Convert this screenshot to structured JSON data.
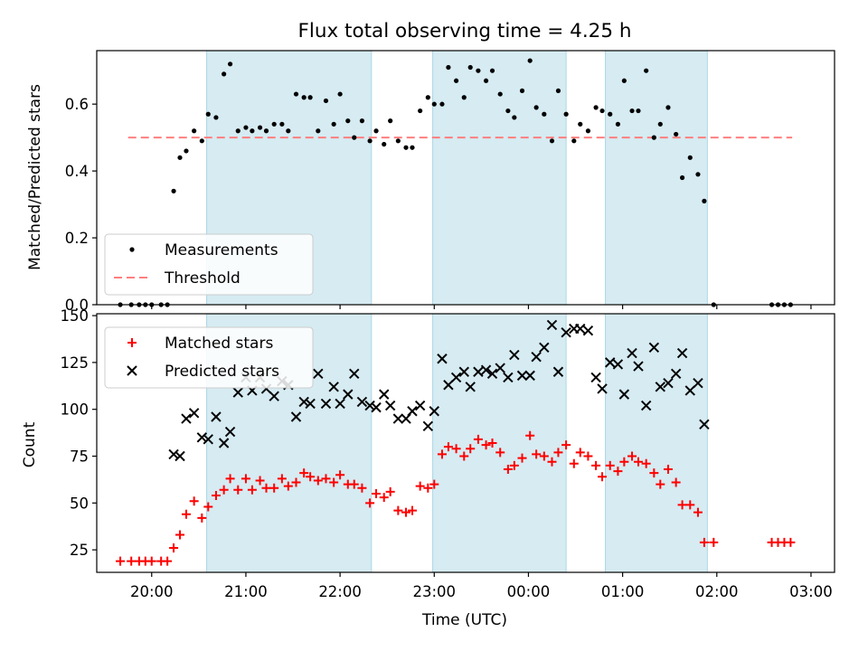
{
  "chart_data": [
    {
      "type": "scatter",
      "title": "Flux total observing time = 4.25 h",
      "ylabel": "Matched/Predicted stars",
      "xlabel": "",
      "x_ticks": [
        "20:00",
        "21:00",
        "22:00",
        "23:00",
        "00:00",
        "01:00",
        "02:00",
        "03:00"
      ],
      "ylim": [
        0,
        0.76
      ],
      "y_ticks": [
        "0.0",
        "0.2",
        "0.4",
        "0.6"
      ],
      "shaded_intervals": [
        [
          "20:35",
          "22:20"
        ],
        [
          "22:59",
          "00:24"
        ],
        [
          "00:49",
          "01:54"
        ]
      ],
      "threshold": {
        "value": 0.5,
        "from": "19:45",
        "to": "02:48",
        "color": "#ff7f7f"
      },
      "legend": {
        "placement": "lower-left",
        "entries": [
          "Measurements",
          "Threshold"
        ]
      },
      "series": [
        {
          "name": "Measurements",
          "color": "#000000",
          "points": [
            [
              "19:40",
              0.0
            ],
            [
              "19:47",
              0.0
            ],
            [
              "19:52",
              0.0
            ],
            [
              "19:56",
              0.0
            ],
            [
              "20:00",
              0.0
            ],
            [
              "20:06",
              0.0
            ],
            [
              "20:10",
              0.0
            ],
            [
              "20:14",
              0.34
            ],
            [
              "20:18",
              0.44
            ],
            [
              "20:22",
              0.46
            ],
            [
              "20:27",
              0.52
            ],
            [
              "20:32",
              0.49
            ],
            [
              "20:36",
              0.57
            ],
            [
              "20:41",
              0.56
            ],
            [
              "20:46",
              0.69
            ],
            [
              "20:50",
              0.72
            ],
            [
              "20:55",
              0.52
            ],
            [
              "21:00",
              0.53
            ],
            [
              "21:04",
              0.52
            ],
            [
              "21:09",
              0.53
            ],
            [
              "21:13",
              0.52
            ],
            [
              "21:18",
              0.54
            ],
            [
              "21:23",
              0.54
            ],
            [
              "21:27",
              0.52
            ],
            [
              "21:32",
              0.63
            ],
            [
              "21:37",
              0.62
            ],
            [
              "21:41",
              0.62
            ],
            [
              "21:46",
              0.52
            ],
            [
              "21:51",
              0.61
            ],
            [
              "21:56",
              0.54
            ],
            [
              "22:00",
              0.63
            ],
            [
              "22:05",
              0.55
            ],
            [
              "22:09",
              0.5
            ],
            [
              "22:14",
              0.55
            ],
            [
              "22:19",
              0.49
            ],
            [
              "22:23",
              0.52
            ],
            [
              "22:28",
              0.48
            ],
            [
              "22:32",
              0.55
            ],
            [
              "22:37",
              0.49
            ],
            [
              "22:42",
              0.47
            ],
            [
              "22:46",
              0.47
            ],
            [
              "22:51",
              0.58
            ],
            [
              "22:56",
              0.62
            ],
            [
              "23:00",
              0.6
            ],
            [
              "23:05",
              0.6
            ],
            [
              "23:09",
              0.71
            ],
            [
              "23:14",
              0.67
            ],
            [
              "23:19",
              0.62
            ],
            [
              "23:23",
              0.71
            ],
            [
              "23:28",
              0.7
            ],
            [
              "23:33",
              0.67
            ],
            [
              "23:37",
              0.7
            ],
            [
              "23:42",
              0.63
            ],
            [
              "23:47",
              0.58
            ],
            [
              "23:51",
              0.56
            ],
            [
              "23:56",
              0.64
            ],
            [
              "00:01",
              0.73
            ],
            [
              "00:05",
              0.59
            ],
            [
              "00:10",
              0.57
            ],
            [
              "00:15",
              0.49
            ],
            [
              "00:19",
              0.64
            ],
            [
              "00:24",
              0.57
            ],
            [
              "00:29",
              0.49
            ],
            [
              "00:33",
              0.54
            ],
            [
              "00:38",
              0.52
            ],
            [
              "00:43",
              0.59
            ],
            [
              "00:47",
              0.58
            ],
            [
              "00:52",
              0.57
            ],
            [
              "00:57",
              0.54
            ],
            [
              "01:01",
              0.67
            ],
            [
              "01:06",
              0.58
            ],
            [
              "01:10",
              0.58
            ],
            [
              "01:15",
              0.7
            ],
            [
              "01:20",
              0.5
            ],
            [
              "01:24",
              0.54
            ],
            [
              "01:29",
              0.59
            ],
            [
              "01:34",
              0.51
            ],
            [
              "01:38",
              0.38
            ],
            [
              "01:43",
              0.44
            ],
            [
              "01:48",
              0.39
            ],
            [
              "01:52",
              0.31
            ],
            [
              "01:58",
              0.0
            ],
            [
              "02:35",
              0.0
            ],
            [
              "02:39",
              0.0
            ],
            [
              "02:43",
              0.0
            ],
            [
              "02:47",
              0.0
            ]
          ]
        }
      ]
    },
    {
      "type": "scatter",
      "title": "",
      "xlabel": "Time (UTC)",
      "ylabel": "Count",
      "x_ticks": [
        "20:00",
        "21:00",
        "22:00",
        "23:00",
        "00:00",
        "01:00",
        "02:00",
        "03:00"
      ],
      "ylim": [
        13,
        151
      ],
      "y_ticks": [
        "25",
        "50",
        "75",
        "100",
        "125",
        "150"
      ],
      "shaded_intervals": [
        [
          "20:35",
          "22:20"
        ],
        [
          "22:59",
          "00:24"
        ],
        [
          "00:49",
          "01:54"
        ]
      ],
      "legend": {
        "placement": "upper-left",
        "entries": [
          "Matched stars",
          "Predicted stars"
        ]
      },
      "series": [
        {
          "name": "Matched stars",
          "color": "#ff0000",
          "marker": "plus",
          "points": [
            [
              "19:40",
              19
            ],
            [
              "19:47",
              19
            ],
            [
              "19:52",
              19
            ],
            [
              "19:56",
              19
            ],
            [
              "20:00",
              19
            ],
            [
              "20:06",
              19
            ],
            [
              "20:10",
              19
            ],
            [
              "20:14",
              26
            ],
            [
              "20:18",
              33
            ],
            [
              "20:22",
              44
            ],
            [
              "20:27",
              51
            ],
            [
              "20:32",
              42
            ],
            [
              "20:36",
              48
            ],
            [
              "20:41",
              54
            ],
            [
              "20:46",
              57
            ],
            [
              "20:50",
              63
            ],
            [
              "20:55",
              57
            ],
            [
              "21:00",
              63
            ],
            [
              "21:04",
              57
            ],
            [
              "21:09",
              62
            ],
            [
              "21:13",
              58
            ],
            [
              "21:18",
              58
            ],
            [
              "21:23",
              63
            ],
            [
              "21:27",
              59
            ],
            [
              "21:32",
              61
            ],
            [
              "21:37",
              66
            ],
            [
              "21:41",
              64
            ],
            [
              "21:46",
              62
            ],
            [
              "21:51",
              63
            ],
            [
              "21:56",
              61
            ],
            [
              "22:00",
              65
            ],
            [
              "22:05",
              60
            ],
            [
              "22:09",
              60
            ],
            [
              "22:14",
              58
            ],
            [
              "22:19",
              50
            ],
            [
              "22:23",
              55
            ],
            [
              "22:28",
              53
            ],
            [
              "22:32",
              56
            ],
            [
              "22:37",
              46
            ],
            [
              "22:42",
              45
            ],
            [
              "22:46",
              46
            ],
            [
              "22:51",
              59
            ],
            [
              "22:56",
              58
            ],
            [
              "23:00",
              60
            ],
            [
              "23:05",
              76
            ],
            [
              "23:09",
              80
            ],
            [
              "23:14",
              79
            ],
            [
              "23:19",
              75
            ],
            [
              "23:23",
              79
            ],
            [
              "23:28",
              84
            ],
            [
              "23:33",
              81
            ],
            [
              "23:37",
              82
            ],
            [
              "23:42",
              77
            ],
            [
              "23:47",
              68
            ],
            [
              "23:51",
              70
            ],
            [
              "23:56",
              74
            ],
            [
              "00:01",
              86
            ],
            [
              "00:05",
              76
            ],
            [
              "00:10",
              75
            ],
            [
              "00:15",
              72
            ],
            [
              "00:19",
              77
            ],
            [
              "00:24",
              81
            ],
            [
              "00:29",
              71
            ],
            [
              "00:33",
              77
            ],
            [
              "00:38",
              75
            ],
            [
              "00:43",
              70
            ],
            [
              "00:47",
              64
            ],
            [
              "00:52",
              70
            ],
            [
              "00:57",
              67
            ],
            [
              "01:01",
              72
            ],
            [
              "01:06",
              75
            ],
            [
              "01:10",
              72
            ],
            [
              "01:15",
              71
            ],
            [
              "01:20",
              66
            ],
            [
              "01:24",
              60
            ],
            [
              "01:29",
              68
            ],
            [
              "01:34",
              61
            ],
            [
              "01:38",
              49
            ],
            [
              "01:43",
              49
            ],
            [
              "01:48",
              45
            ],
            [
              "01:52",
              29
            ],
            [
              "01:58",
              29
            ],
            [
              "02:35",
              29
            ],
            [
              "02:39",
              29
            ],
            [
              "02:43",
              29
            ],
            [
              "02:47",
              29
            ]
          ]
        },
        {
          "name": "Predicted stars",
          "color": "#000000",
          "marker": "x",
          "points": [
            [
              "20:14",
              76
            ],
            [
              "20:18",
              75
            ],
            [
              "20:22",
              95
            ],
            [
              "20:27",
              98
            ],
            [
              "20:32",
              85
            ],
            [
              "20:36",
              84
            ],
            [
              "20:41",
              96
            ],
            [
              "20:46",
              82
            ],
            [
              "20:50",
              88
            ],
            [
              "20:55",
              109
            ],
            [
              "21:00",
              117
            ],
            [
              "21:04",
              110
            ],
            [
              "21:09",
              117
            ],
            [
              "21:13",
              111
            ],
            [
              "21:18",
              107
            ],
            [
              "21:23",
              115
            ],
            [
              "21:27",
              113
            ],
            [
              "21:32",
              96
            ],
            [
              "21:37",
              104
            ],
            [
              "21:41",
              103
            ],
            [
              "21:46",
              119
            ],
            [
              "21:51",
              103
            ],
            [
              "21:56",
              112
            ],
            [
              "22:00",
              103
            ],
            [
              "22:05",
              108
            ],
            [
              "22:09",
              119
            ],
            [
              "22:14",
              104
            ],
            [
              "22:19",
              102
            ],
            [
              "22:23",
              101
            ],
            [
              "22:28",
              108
            ],
            [
              "22:32",
              102
            ],
            [
              "22:37",
              95
            ],
            [
              "22:42",
              95
            ],
            [
              "22:46",
              99
            ],
            [
              "22:51",
              102
            ],
            [
              "22:56",
              91
            ],
            [
              "23:00",
              99
            ],
            [
              "23:05",
              127
            ],
            [
              "23:09",
              113
            ],
            [
              "23:14",
              117
            ],
            [
              "23:19",
              120
            ],
            [
              "23:23",
              112
            ],
            [
              "23:28",
              120
            ],
            [
              "23:33",
              121
            ],
            [
              "23:37",
              119
            ],
            [
              "23:42",
              122
            ],
            [
              "23:47",
              117
            ],
            [
              "23:51",
              129
            ],
            [
              "23:56",
              118
            ],
            [
              "00:01",
              118
            ],
            [
              "00:05",
              128
            ],
            [
              "00:10",
              133
            ],
            [
              "00:15",
              145
            ],
            [
              "00:19",
              120
            ],
            [
              "00:24",
              141
            ],
            [
              "00:29",
              143
            ],
            [
              "00:33",
              143
            ],
            [
              "00:38",
              142
            ],
            [
              "00:43",
              117
            ],
            [
              "00:47",
              111
            ],
            [
              "00:52",
              125
            ],
            [
              "00:57",
              124
            ],
            [
              "01:01",
              108
            ],
            [
              "01:06",
              130
            ],
            [
              "01:10",
              123
            ],
            [
              "01:15",
              102
            ],
            [
              "01:20",
              133
            ],
            [
              "01:24",
              112
            ],
            [
              "01:29",
              114
            ],
            [
              "01:34",
              119
            ],
            [
              "01:38",
              130
            ],
            [
              "01:43",
              110
            ],
            [
              "01:48",
              114
            ],
            [
              "01:52",
              92
            ]
          ]
        }
      ]
    }
  ]
}
